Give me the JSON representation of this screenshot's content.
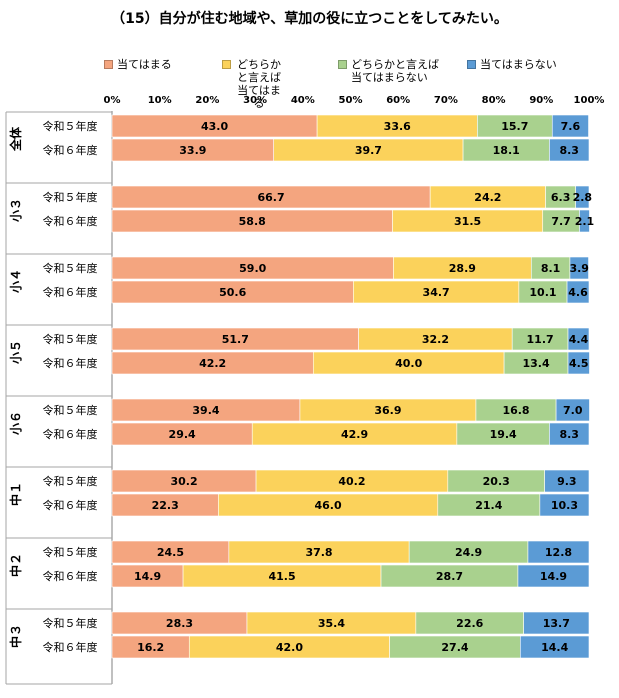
{
  "chart_title": "（15）自分が住む地域や、草加の役に立つことをしてみたい。",
  "legend": [
    {
      "label": "当てはまる",
      "color": "#f4a57f"
    },
    {
      "label": "どちらかと言えば\n当てはまる",
      "color": "#fbd25b"
    },
    {
      "label": "どちらかと言えば\n当てはまらない",
      "color": "#a9d18e"
    },
    {
      "label": "当てはまらない",
      "color": "#5b9bd5"
    }
  ],
  "chart_data": {
    "type": "bar",
    "orientation": "horizontal",
    "stacked": "percent",
    "xlim": [
      0,
      100
    ],
    "x_tick_labels": [
      "0%",
      "10%",
      "20%",
      "30%",
      "40%",
      "50%",
      "60%",
      "70%",
      "80%",
      "90%",
      "100%"
    ],
    "groups": [
      {
        "label": "全体",
        "rows": [
          {
            "label": "令和５年度",
            "values": [
              43.0,
              33.6,
              15.7,
              7.6
            ]
          },
          {
            "label": "令和６年度",
            "values": [
              33.9,
              39.7,
              18.1,
              8.3
            ]
          }
        ]
      },
      {
        "label": "小３",
        "rows": [
          {
            "label": "令和５年度",
            "values": [
              66.7,
              24.2,
              6.3,
              2.8
            ]
          },
          {
            "label": "令和６年度",
            "values": [
              58.8,
              31.5,
              7.7,
              2.1
            ]
          }
        ]
      },
      {
        "label": "小４",
        "rows": [
          {
            "label": "令和５年度",
            "values": [
              59.0,
              28.9,
              8.1,
              3.9
            ]
          },
          {
            "label": "令和６年度",
            "values": [
              50.6,
              34.7,
              10.1,
              4.6
            ]
          }
        ]
      },
      {
        "label": "小５",
        "rows": [
          {
            "label": "令和５年度",
            "values": [
              51.7,
              32.2,
              11.7,
              4.4
            ]
          },
          {
            "label": "令和６年度",
            "values": [
              42.2,
              40.0,
              13.4,
              4.5
            ]
          }
        ]
      },
      {
        "label": "小６",
        "rows": [
          {
            "label": "令和５年度",
            "values": [
              39.4,
              36.9,
              16.8,
              7.0
            ]
          },
          {
            "label": "令和６年度",
            "values": [
              29.4,
              42.9,
              19.4,
              8.3
            ]
          }
        ]
      },
      {
        "label": "中１",
        "rows": [
          {
            "label": "令和５年度",
            "values": [
              30.2,
              40.2,
              20.3,
              9.3
            ]
          },
          {
            "label": "令和６年度",
            "values": [
              22.3,
              46.0,
              21.4,
              10.3
            ]
          }
        ]
      },
      {
        "label": "中２",
        "rows": [
          {
            "label": "令和５年度",
            "values": [
              24.5,
              37.8,
              24.9,
              12.8
            ]
          },
          {
            "label": "令和６年度",
            "values": [
              14.9,
              41.5,
              28.7,
              14.9
            ]
          }
        ]
      },
      {
        "label": "中３",
        "rows": [
          {
            "label": "令和５年度",
            "values": [
              28.3,
              35.4,
              22.6,
              13.7
            ]
          },
          {
            "label": "令和６年度",
            "values": [
              16.2,
              42.0,
              27.4,
              14.4
            ]
          }
        ]
      }
    ]
  }
}
